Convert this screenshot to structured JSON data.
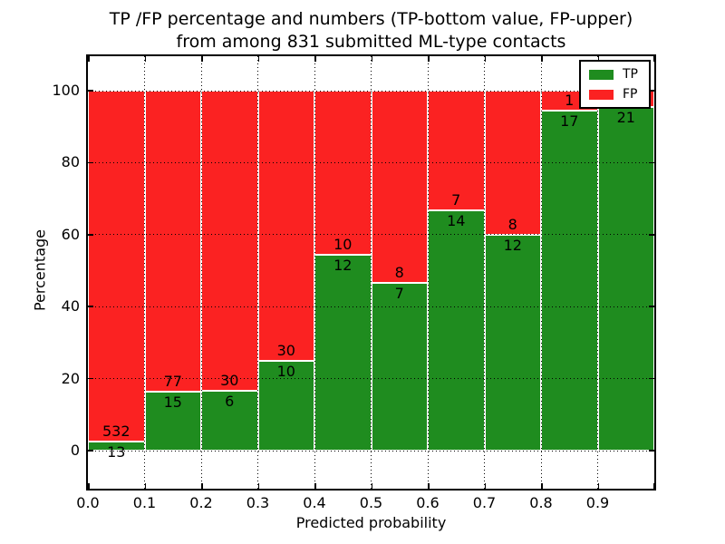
{
  "chart_data": {
    "type": "bar",
    "stacked": true,
    "title": "TP /FP percentage and numbers (TP-bottom value, FP-upper)",
    "subtitle": "from among 831 submitted ML-type contacts",
    "total_contacts": 831,
    "xlabel": "Predicted probability",
    "ylabel": "Percentage",
    "x_tick_labels": [
      "0.0",
      "0.1",
      "0.2",
      "0.3",
      "0.4",
      "0.5",
      "0.6",
      "0.7",
      "0.8",
      "0.9"
    ],
    "y_tick_values": [
      0,
      20,
      40,
      60,
      80,
      100
    ],
    "xlim": [
      0.0,
      1.0
    ],
    "ylim": [
      -10.6,
      109.6
    ],
    "grid": {
      "visible": true,
      "style": "dotted",
      "color": "#000000"
    },
    "colors": {
      "tp": "#1f8c1f",
      "fp": "#fb2222",
      "bar_edge": "#ffffff",
      "axis": "#000000",
      "background": "#ffffff"
    },
    "legend": {
      "position": "upper-right",
      "entries": [
        {
          "label": "TP",
          "color": "#1f8c1f"
        },
        {
          "label": "FP",
          "color": "#fb2222"
        }
      ]
    },
    "bins": [
      {
        "x_range": [
          0.0,
          0.1
        ],
        "tp_count": 13,
        "fp_count": 532,
        "tp_pct": 2.4,
        "fp_pct": 97.6
      },
      {
        "x_range": [
          0.1,
          0.2
        ],
        "tp_count": 15,
        "fp_count": 77,
        "tp_pct": 16.3,
        "fp_pct": 83.7
      },
      {
        "x_range": [
          0.2,
          0.3
        ],
        "tp_count": 6,
        "fp_count": 30,
        "tp_pct": 16.7,
        "fp_pct": 83.3
      },
      {
        "x_range": [
          0.3,
          0.4
        ],
        "tp_count": 10,
        "fp_count": 30,
        "tp_pct": 25.0,
        "fp_pct": 75.0
      },
      {
        "x_range": [
          0.4,
          0.5
        ],
        "tp_count": 12,
        "fp_count": 10,
        "tp_pct": 54.5,
        "fp_pct": 45.5
      },
      {
        "x_range": [
          0.5,
          0.6
        ],
        "tp_count": 7,
        "fp_count": 8,
        "tp_pct": 46.7,
        "fp_pct": 53.3
      },
      {
        "x_range": [
          0.6,
          0.7
        ],
        "tp_count": 14,
        "fp_count": 7,
        "tp_pct": 66.7,
        "fp_pct": 33.3
      },
      {
        "x_range": [
          0.7,
          0.8
        ],
        "tp_count": 12,
        "fp_count": 8,
        "tp_pct": 60.0,
        "fp_pct": 40.0
      },
      {
        "x_range": [
          0.8,
          0.9
        ],
        "tp_count": 17,
        "fp_count": 1,
        "tp_pct": 94.4,
        "fp_pct": 5.6
      },
      {
        "x_range": [
          0.9,
          1.0
        ],
        "tp_count": 21,
        "fp_count": null,
        "tp_pct": 95.5,
        "fp_pct": 4.5,
        "fp_label_hidden": true
      }
    ]
  }
}
